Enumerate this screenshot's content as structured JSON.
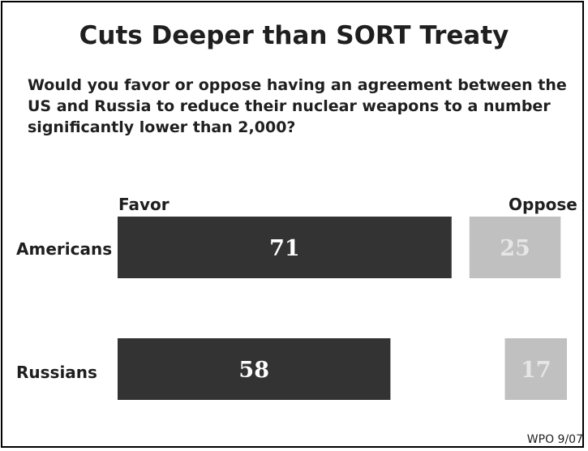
{
  "title": "Cuts Deeper than SORT Treaty",
  "question": "Would you favor or oppose having an agreement between the US and Russia to reduce their nuclear weapons to a number significantly lower than 2,000?",
  "footer": "WPO 9/07",
  "colors": {
    "favor": "#333333",
    "oppose": "#c0c0c0",
    "favor_text": "#ffffff",
    "oppose_text": "#e6e6e6"
  },
  "chart_data": {
    "type": "bar",
    "categories": [
      "Americans",
      "Russians"
    ],
    "series": [
      {
        "name": "Favor",
        "values": [
          71,
          58
        ]
      },
      {
        "name": "Oppose",
        "values": [
          25,
          17
        ]
      }
    ],
    "title": "Cuts Deeper than SORT Treaty",
    "xlabel": "",
    "ylabel": ""
  }
}
